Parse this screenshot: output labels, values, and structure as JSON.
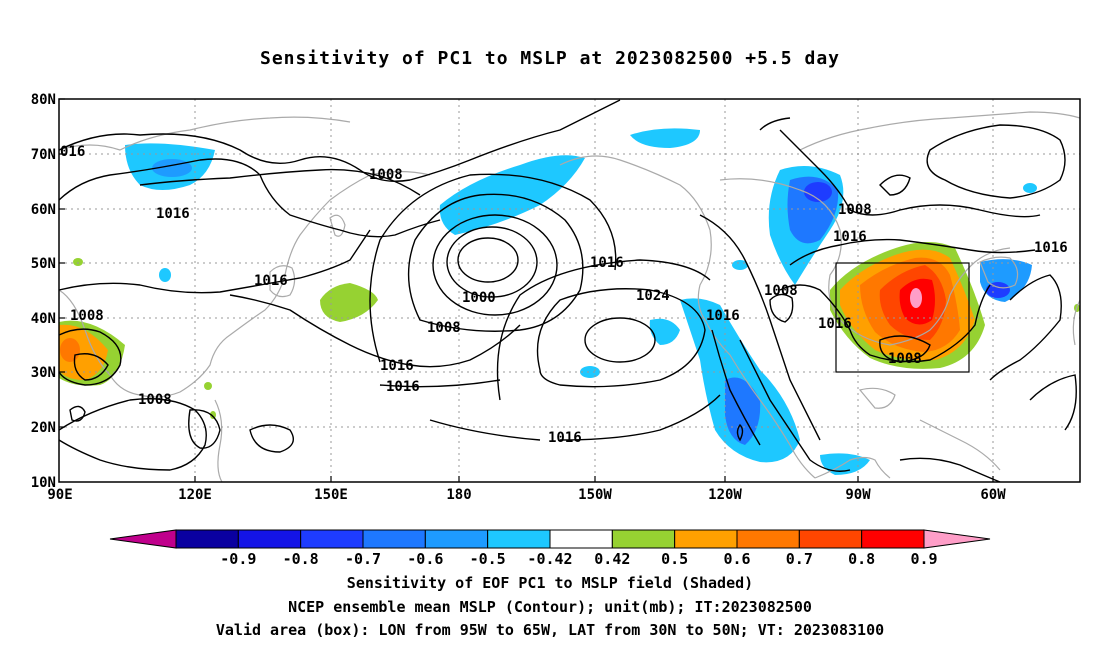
{
  "title": "Sensitivity of PC1 to MSLP at 2023082500 +5.5 day",
  "lat_labels": [
    "80N",
    "70N",
    "60N",
    "50N",
    "40N",
    "30N",
    "20N",
    "10N"
  ],
  "lon_labels": [
    "90E",
    "120E",
    "150E",
    "180",
    "150W",
    "120W",
    "90W",
    "60W"
  ],
  "colorbar": {
    "labels": [
      "-0.9",
      "-0.8",
      "-0.7",
      "-0.6",
      "-0.5",
      "-0.42",
      "0.42",
      "0.5",
      "0.6",
      "0.7",
      "0.8",
      "0.9"
    ],
    "colors": [
      "#c0008c",
      "#0a00a0",
      "#1414e6",
      "#1e3cff",
      "#1e78ff",
      "#1e9bff",
      "#1ec8ff",
      "#ffffff",
      "#96d232",
      "#ffa000",
      "#ff7800",
      "#ff4600",
      "#ff0000",
      "#ff9ec8"
    ]
  },
  "contour_labels": [
    "016",
    "1016",
    "1008",
    "1016",
    "1000",
    "1008",
    "1016",
    "1016",
    "1008",
    "1016",
    "1024",
    "1016",
    "1016",
    "1008",
    "1016",
    "1008",
    "1016",
    "1008",
    "1008",
    "1016",
    "1008"
  ],
  "box": {
    "lon_from": "95W",
    "lon_to": "65W",
    "lat_from": "30N",
    "lat_to": "50N"
  },
  "captions": [
    "Sensitivity of EOF PC1 to MSLP field (Shaded)",
    "NCEP ensemble mean MSLP (Contour); unit(mb); IT:2023082500",
    "Valid area (box): LON from 95W to 65W, LAT from 30N to 50N; VT: 2023083100"
  ]
}
